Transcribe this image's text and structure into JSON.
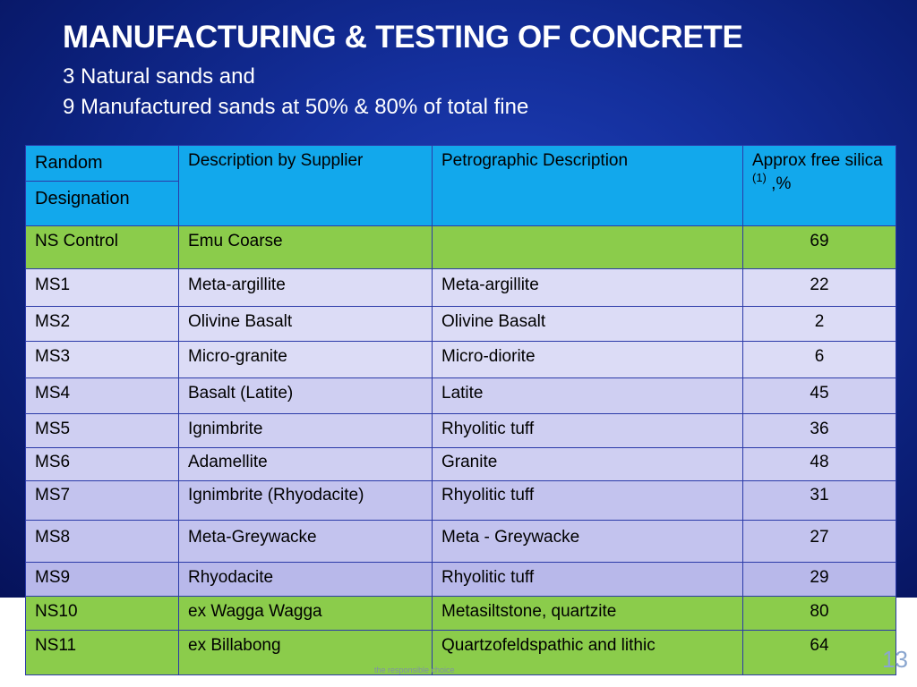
{
  "slide": {
    "title": "MANUFACTURING & TESTING OF CONCRETE",
    "subtitle_1": "3 Natural sands and",
    "subtitle_2": "9 Manufactured sands at 50% & 80% of total fine",
    "page_number": "13",
    "footer_text": "the responsible choice"
  },
  "table": {
    "header": {
      "random": "Random",
      "designation": "Designation",
      "description": "Description by Supplier",
      "petrographic": "Petrographic Description",
      "silica_prefix": "Approx free silica",
      "silica_sup": "(1)",
      "silica_suffix": ",%"
    },
    "rows": [
      {
        "designation": "NS Control",
        "description": "Emu Coarse",
        "petrographic": "",
        "silica": "69"
      },
      {
        "designation": "MS1",
        "description": "Meta-argillite",
        "petrographic": "Meta-argillite",
        "silica": "22"
      },
      {
        "designation": "MS2",
        "description": "Olivine Basalt",
        "petrographic": "Olivine Basalt",
        "silica": "2"
      },
      {
        "designation": "MS3",
        "description": "Micro-granite",
        "petrographic": "Micro-diorite",
        "silica": "6"
      },
      {
        "designation": "MS4",
        "description": "Basalt (Latite)",
        "petrographic": "Latite",
        "silica": "45"
      },
      {
        "designation": "MS5",
        "description": "Ignimbrite",
        "petrographic": "Rhyolitic tuff",
        "silica": "36"
      },
      {
        "designation": "MS6",
        "description": "Adamellite",
        "petrographic": "Granite",
        "silica": "48"
      },
      {
        "designation": "MS7",
        "description": "Ignimbrite (Rhyodacite)",
        "petrographic": "Rhyolitic tuff",
        "silica": "31"
      },
      {
        "designation": "MS8",
        "description": "Meta-Greywacke",
        "petrographic": "Meta - Greywacke",
        "silica": "27"
      },
      {
        "designation": "MS9",
        "description": "Rhyodacite",
        "petrographic": "Rhyolitic tuff",
        "silica": "29"
      },
      {
        "designation": "NS10",
        "description": "ex Wagga Wagga",
        "petrographic": "Metasiltstone, quartzite",
        "silica": "80"
      },
      {
        "designation": "NS11",
        "description": "ex Billabong",
        "petrographic": "Quartzofeldspathic and lithic",
        "silica": "64"
      }
    ]
  },
  "colors": {
    "background": "#142f9c",
    "header": "#12a8ec",
    "natural_sand_row": "#8bcc4b",
    "manufactured_sand_row": "#cfcff2"
  }
}
